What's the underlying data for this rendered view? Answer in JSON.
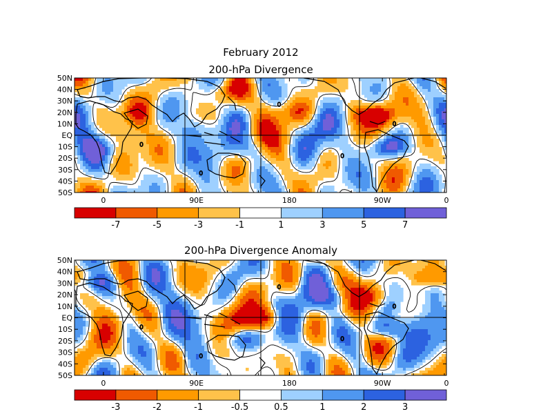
{
  "figure": {
    "title_line1": "February 2012",
    "colors": [
      "#d80000",
      "#f05a00",
      "#ff9a00",
      "#ffc24a",
      "#ffffff",
      "#9ed0ff",
      "#4f97f0",
      "#2c62e0",
      "#7060d8"
    ]
  },
  "chart_data": [
    {
      "type": "heatmap",
      "title": "200-hPa Divergence",
      "x_ticks": [
        "0",
        "90E",
        "180",
        "90W",
        "0"
      ],
      "y_ticks": [
        "50N",
        "40N",
        "30N",
        "20N",
        "10N",
        "EQ",
        "10S",
        "20S",
        "30S",
        "40S",
        "50S"
      ],
      "xlim": [
        0,
        360
      ],
      "ylim": [
        -50,
        50
      ],
      "colorbar": {
        "bounds": [
          -9,
          -7,
          -5,
          -3,
          -1,
          1,
          3,
          5,
          7,
          9
        ],
        "labels": [
          "-7",
          "-5",
          "-3",
          "-1",
          "1",
          "3",
          "5",
          "7"
        ]
      },
      "contour_label": "0",
      "features": [
        {
          "lon": 290,
          "lat": 18,
          "value": -9
        },
        {
          "lon": 300,
          "lat": -10,
          "value": 8
        },
        {
          "lon": 165,
          "lat": -12,
          "value": 4
        },
        {
          "lon": 125,
          "lat": 5,
          "value": 3
        },
        {
          "lon": 25,
          "lat": -12,
          "value": 4
        },
        {
          "lon": 60,
          "lat": 20,
          "value": -3
        },
        {
          "lon": 145,
          "lat": 38,
          "value": -5
        },
        {
          "lon": 210,
          "lat": 20,
          "value": -4
        }
      ]
    },
    {
      "type": "heatmap",
      "title": "200-hPa Divergence Anomaly",
      "x_ticks": [
        "0",
        "90E",
        "180",
        "90W",
        "0"
      ],
      "y_ticks": [
        "50N",
        "40N",
        "30N",
        "20N",
        "10N",
        "EQ",
        "10S",
        "20S",
        "30S",
        "40S",
        "50S"
      ],
      "xlim": [
        0,
        360
      ],
      "ylim": [
        -50,
        50
      ],
      "colorbar": {
        "bounds": [
          -4,
          -3,
          -2,
          -1,
          -0.5,
          0.5,
          1,
          2,
          3,
          4
        ],
        "labels": [
          "-3",
          "-2",
          "-1",
          "-0.5",
          "0.5",
          "1",
          "2",
          "3"
        ]
      },
      "contour_label": "0",
      "features": [
        {
          "lon": 180,
          "lat": 0,
          "value": -3.5
        },
        {
          "lon": 300,
          "lat": -10,
          "value": 3.5
        },
        {
          "lon": 20,
          "lat": 30,
          "value": 3
        },
        {
          "lon": 285,
          "lat": 18,
          "value": -3
        },
        {
          "lon": 160,
          "lat": -18,
          "value": 2.5
        },
        {
          "lon": 350,
          "lat": 35,
          "value": -3
        },
        {
          "lon": 255,
          "lat": 18,
          "value": 2.5
        }
      ]
    }
  ]
}
